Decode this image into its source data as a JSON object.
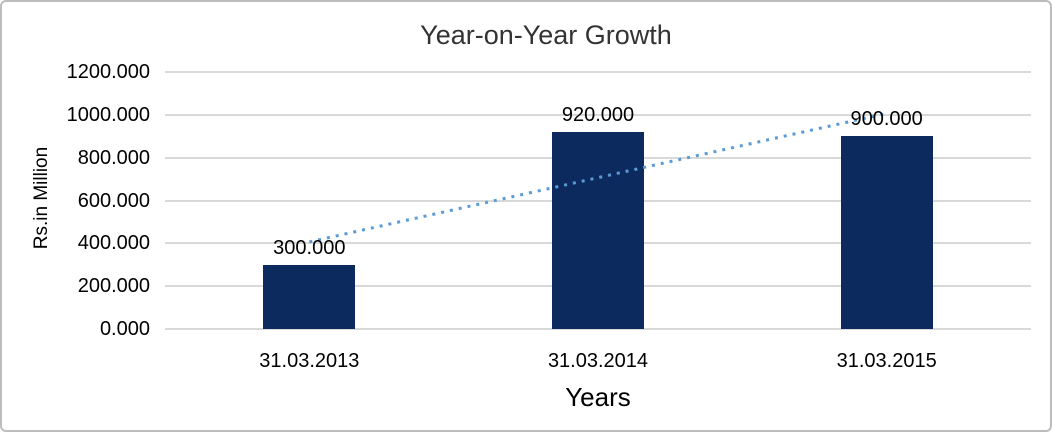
{
  "chart_data": {
    "type": "bar",
    "title": "Year-on-Year Growth",
    "xlabel": "Years",
    "ylabel": "Rs.in Million",
    "categories": [
      "31.03.2013",
      "31.03.2014",
      "31.03.2015"
    ],
    "values": [
      300.0,
      920.0,
      900.0
    ],
    "data_labels": [
      "300.000",
      "920.000",
      "900.000"
    ],
    "y_ticks": [
      {
        "value": 0,
        "label": "0.000"
      },
      {
        "value": 200,
        "label": "200.000"
      },
      {
        "value": 400,
        "label": "400.000"
      },
      {
        "value": 600,
        "label": "600.000"
      },
      {
        "value": 800,
        "label": "800.000"
      },
      {
        "value": 1000,
        "label": "1000.000"
      },
      {
        "value": 1200,
        "label": "1200.000"
      }
    ],
    "ylim": [
      0,
      1200
    ],
    "grid": true,
    "legend": "none",
    "bar_color": "#0d2a5f",
    "trendline": {
      "type": "linear",
      "style": "dotted",
      "color": "#5b9bd5",
      "start_value": 406.667,
      "end_value": 1006.667
    },
    "colors": {
      "gridline": "#d9d9d9",
      "axis_text": "#000000",
      "title_text": "#333333",
      "frame_border": "#bdbdbd",
      "background": "#ffffff"
    }
  }
}
